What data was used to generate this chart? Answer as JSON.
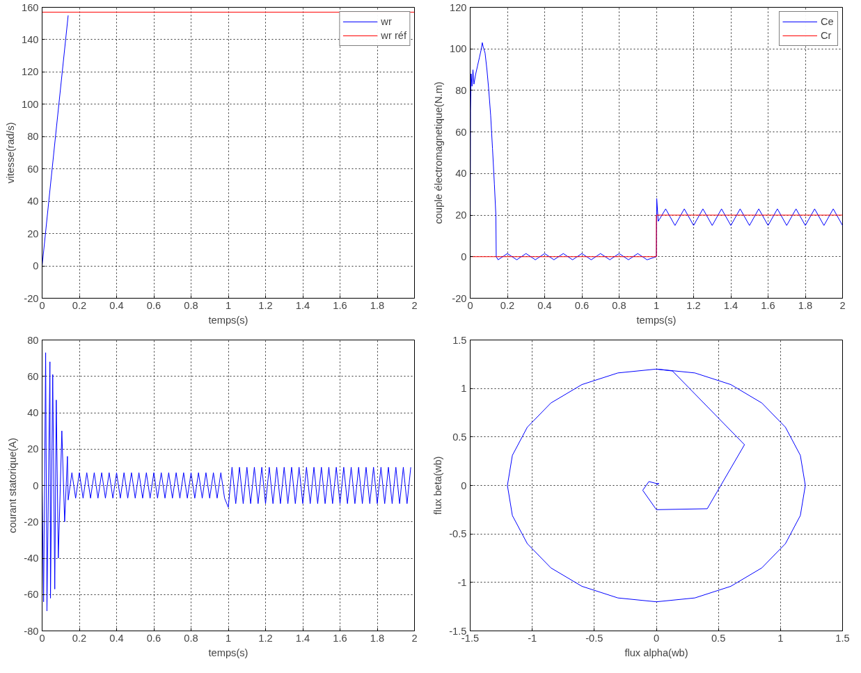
{
  "chart_data": [
    {
      "type": "line",
      "xlabel": "temps(s)",
      "ylabel": "vitesse(rad/s)",
      "xlim": [
        0,
        2
      ],
      "ylim": [
        -20,
        160
      ],
      "xticks": [
        0,
        0.2,
        0.4,
        0.6,
        0.8,
        1,
        1.2,
        1.4,
        1.6,
        1.8,
        2
      ],
      "yticks": [
        -20,
        0,
        20,
        40,
        60,
        80,
        100,
        120,
        140,
        160
      ],
      "grid": true,
      "legend": "top right",
      "series": [
        {
          "name": "wr",
          "color": "#0000ff",
          "x": [
            0,
            0.07,
            0.14
          ],
          "values": [
            0,
            78,
            155
          ]
        },
        {
          "name": "wr réf",
          "color": "#ff0000",
          "x": [
            0,
            2
          ],
          "values": [
            157,
            157
          ]
        }
      ]
    },
    {
      "type": "line",
      "xlabel": "temps(s)",
      "ylabel": "couple électromagnetique(N.m)",
      "xlim": [
        0,
        2
      ],
      "ylim": [
        -20,
        120
      ],
      "xticks": [
        0,
        0.2,
        0.4,
        0.6,
        0.8,
        1,
        1.2,
        1.4,
        1.6,
        1.8,
        2
      ],
      "yticks": [
        -20,
        0,
        20,
        40,
        60,
        80,
        100,
        120
      ],
      "grid": true,
      "legend": "top right",
      "series": [
        {
          "name": "Ce",
          "color": "#0000ff",
          "x": [
            0,
            0.002,
            0.005,
            0.01,
            0.015,
            0.02,
            0.03,
            0.04,
            0.05,
            0.06,
            0.065,
            0.07,
            0.08,
            0.09,
            0.1,
            0.11,
            0.12,
            0.13,
            0.138,
            0.14,
            0.15,
            0.2,
            0.25,
            0.3,
            0.35,
            0.4,
            0.45,
            0.5,
            0.55,
            0.6,
            0.65,
            0.7,
            0.75,
            0.8,
            0.85,
            0.9,
            0.95,
            1.0,
            1.002,
            1.01,
            1.05,
            1.1,
            1.15,
            1.2,
            1.25,
            1.3,
            1.35,
            1.4,
            1.45,
            1.5,
            1.55,
            1.6,
            1.65,
            1.7,
            1.75,
            1.8,
            1.85,
            1.9,
            1.95,
            2.0
          ],
          "values": [
            0,
            70,
            88,
            82,
            90,
            83,
            88,
            92,
            96,
            100,
            103,
            101,
            98,
            90,
            80,
            68,
            52,
            35,
            20,
            0,
            -1.5,
            1.5,
            -1.5,
            1.5,
            -1.5,
            1.5,
            -1.5,
            1.5,
            -1.5,
            1.5,
            -1.5,
            1.5,
            -1.5,
            1.5,
            -1.5,
            1.5,
            -1.5,
            0,
            28,
            17,
            23,
            15,
            23,
            15,
            23,
            15,
            23,
            15,
            23,
            15,
            23,
            15,
            23,
            15,
            23,
            15,
            23,
            15,
            23,
            15
          ]
        },
        {
          "name": "Cr",
          "color": "#ff0000",
          "x": [
            0,
            1,
            1,
            2
          ],
          "values": [
            0,
            0,
            20,
            20
          ]
        }
      ]
    },
    {
      "type": "line",
      "xlabel": "temps(s)",
      "ylabel": "courant statorique(A)",
      "xlim": [
        0,
        2
      ],
      "ylim": [
        -80,
        80
      ],
      "xticks": [
        0,
        0.2,
        0.4,
        0.6,
        0.8,
        1,
        1.2,
        1.4,
        1.6,
        1.8,
        2
      ],
      "yticks": [
        -80,
        -60,
        -40,
        -20,
        0,
        20,
        40,
        60,
        80
      ],
      "grid": true,
      "series": [
        {
          "color": "#0000ff",
          "x": [
            0,
            0.008,
            0.019,
            0.026,
            0.042,
            0.045,
            0.057,
            0.068,
            0.076,
            0.087,
            0.106,
            0.121,
            0.136,
            0.14,
            0.16,
            0.18,
            0.2,
            0.22,
            0.24,
            0.26,
            0.28,
            0.3,
            0.32,
            0.34,
            0.36,
            0.38,
            0.4,
            0.42,
            0.44,
            0.46,
            0.48,
            0.5,
            0.52,
            0.54,
            0.56,
            0.58,
            0.6,
            0.62,
            0.64,
            0.66,
            0.68,
            0.7,
            0.72,
            0.74,
            0.76,
            0.78,
            0.8,
            0.82,
            0.84,
            0.86,
            0.88,
            0.9,
            0.92,
            0.94,
            0.96,
            0.98,
            1.0,
            1.02,
            1.04,
            1.06,
            1.08,
            1.1,
            1.12,
            1.14,
            1.16,
            1.18,
            1.2,
            1.22,
            1.24,
            1.26,
            1.28,
            1.3,
            1.32,
            1.34,
            1.36,
            1.38,
            1.4,
            1.42,
            1.44,
            1.46,
            1.48,
            1.5,
            1.52,
            1.54,
            1.56,
            1.58,
            1.6,
            1.62,
            1.64,
            1.66,
            1.68,
            1.7,
            1.72,
            1.74,
            1.76,
            1.78,
            1.8,
            1.82,
            1.84,
            1.86,
            1.88,
            1.9,
            1.92,
            1.94,
            1.96,
            1.98
          ],
          "values": [
            0,
            -64,
            73,
            -69,
            68,
            -62,
            61,
            -57,
            47,
            -40,
            30,
            -20,
            16,
            -8,
            7,
            -7,
            7,
            -7,
            7,
            -7,
            7,
            -7,
            7,
            -7,
            7,
            -7,
            7,
            -7,
            7,
            -7,
            7,
            -7,
            7,
            -7,
            7,
            -7,
            7,
            -7,
            7,
            -7,
            7,
            -7,
            7,
            -7,
            7,
            -7,
            7,
            -7,
            7,
            -7,
            7,
            -7,
            7,
            -7,
            7,
            -7,
            -12,
            10,
            -10,
            10,
            -10,
            10,
            -10,
            10,
            -10,
            10,
            -10,
            10,
            -10,
            10,
            -10,
            10,
            -10,
            10,
            -10,
            10,
            -10,
            10,
            -10,
            10,
            -10,
            10,
            -10,
            10,
            -10,
            10,
            -10,
            10,
            -10,
            10,
            -10,
            10,
            -10,
            10,
            -10,
            10,
            -10,
            10,
            -10,
            10,
            -10,
            10,
            -10,
            10,
            -10,
            10
          ]
        }
      ]
    },
    {
      "type": "line",
      "xlabel": "flux alpha(wb)",
      "ylabel": "flux beta(wb)",
      "xlim": [
        -1.5,
        1.5
      ],
      "ylim": [
        -1.5,
        1.5
      ],
      "xticks": [
        -1.5,
        -1,
        -0.5,
        0,
        0.5,
        1,
        1.5
      ],
      "yticks": [
        -1.5,
        -1,
        -0.5,
        0,
        0.5,
        1,
        1.5
      ],
      "grid": true,
      "series": [
        {
          "color": "#0000ff",
          "x": [
            0,
            0.02,
            0,
            -0.06,
            -0.11,
            0,
            0.41,
            0.71,
            0.13,
            0,
            -0.31,
            -0.6,
            -0.85,
            -1.04,
            -1.16,
            -1.2,
            -1.16,
            -1.04,
            -0.85,
            -0.6,
            -0.31,
            0,
            0.31,
            0.6,
            0.85,
            1.04,
            1.16,
            1.2,
            1.16,
            1.04,
            0.85,
            0.6,
            0.31,
            0
          ],
          "values": [
            0,
            0.02,
            0.02,
            0.04,
            -0.05,
            -0.25,
            -0.24,
            0.42,
            1.18,
            1.2,
            1.16,
            1.04,
            0.85,
            0.6,
            0.31,
            0,
            -0.31,
            -0.6,
            -0.85,
            -1.04,
            -1.16,
            -1.2,
            -1.16,
            -1.04,
            -0.85,
            -0.6,
            -0.31,
            0,
            0.31,
            0.6,
            0.85,
            1.04,
            1.16,
            1.2
          ]
        }
      ]
    }
  ]
}
